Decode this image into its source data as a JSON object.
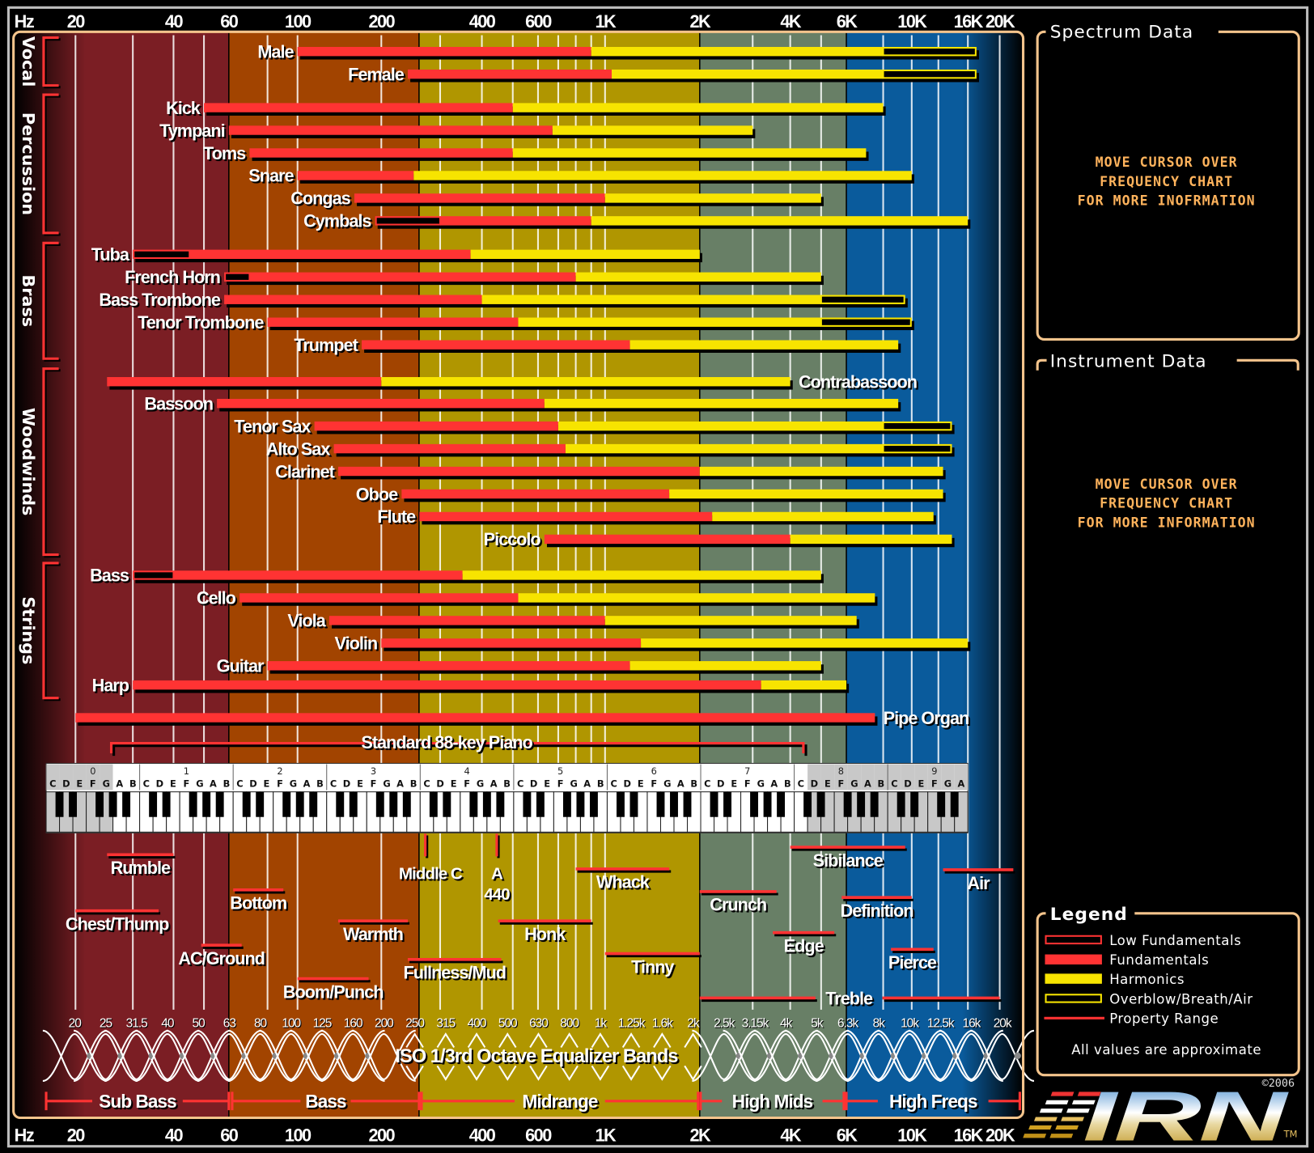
{
  "panels": {
    "spectrum": {
      "title": "Spectrum Data",
      "lines": [
        "MOVE CURSOR OVER",
        "FREQUENCY CHART",
        "FOR MORE INOFRMATION"
      ]
    },
    "instrument": {
      "title": "Instrument Data",
      "lines": [
        "MOVE CURSOR OVER",
        "FREQUENCY CHART",
        "FOR MORE INFORMATION"
      ]
    }
  },
  "legend": {
    "title": "Legend",
    "items": [
      {
        "label": "Low Fundamentals",
        "swatch": "outline-red"
      },
      {
        "label": "Fundamentals",
        "swatch": "solid-red"
      },
      {
        "label": "Harmonics",
        "swatch": "solid-yellow"
      },
      {
        "label": "Overblow/Breath/Air",
        "swatch": "outline-yellow"
      },
      {
        "label": "Property Range",
        "swatch": "line-red"
      }
    ],
    "note": "All values are approximate"
  },
  "branding": {
    "logo": "IRN",
    "copyright": "©2006",
    "tm": "TM"
  },
  "colors": {
    "fundamental": "#ff3333",
    "harmonic": "#f7e400",
    "frame": "#f4c48c",
    "message": "#ffb35c"
  },
  "chart_data": {
    "type": "bar",
    "title": "",
    "x_scale": "log",
    "xlim": [
      20,
      20000
    ],
    "axis_unit": "Hz",
    "axis_ticks": [
      {
        "hz": 20,
        "label": "20"
      },
      {
        "hz": 40,
        "label": "40"
      },
      {
        "hz": 60,
        "label": "60"
      },
      {
        "hz": 100,
        "label": "100"
      },
      {
        "hz": 200,
        "label": "200"
      },
      {
        "hz": 400,
        "label": "400"
      },
      {
        "hz": 600,
        "label": "600"
      },
      {
        "hz": 1000,
        "label": "1K"
      },
      {
        "hz": 2000,
        "label": "2K"
      },
      {
        "hz": 4000,
        "label": "4K"
      },
      {
        "hz": 6000,
        "label": "6K"
      },
      {
        "hz": 10000,
        "label": "10K"
      },
      {
        "hz": 16000,
        "label": "16K"
      },
      {
        "hz": 20000,
        "label": "20K"
      }
    ],
    "gridlines_hz": [
      20,
      30,
      40,
      50,
      80,
      100,
      200,
      300,
      400,
      500,
      600,
      700,
      800,
      900,
      1000,
      3000,
      4000,
      5000,
      8000,
      10000,
      12500,
      16000,
      20000
    ],
    "spectrum_bands": [
      {
        "name": "Sub Bass",
        "range": [
          16,
          60
        ],
        "color": "#7b1e24"
      },
      {
        "name": "Bass",
        "range": [
          60,
          250
        ],
        "color": "#a24400"
      },
      {
        "name": "Midrange",
        "range": [
          250,
          2000
        ],
        "color": "#b09600"
      },
      {
        "name": "High Mids",
        "range": [
          2000,
          6000
        ],
        "color": "#687f66"
      },
      {
        "name": "High Freqs",
        "range": [
          6000,
          20000
        ],
        "color": "#0a5b9c"
      }
    ],
    "categories": [
      {
        "name": "Vocal",
        "instruments": [
          {
            "name": "Male",
            "fund": [
              100,
              900
            ],
            "harm_end": 8000,
            "air_end": 17000
          },
          {
            "name": "Female",
            "fund": [
              240,
              1050
            ],
            "harm_end": 8000,
            "air_end": 17000
          }
        ]
      },
      {
        "name": "Percussion",
        "instruments": [
          {
            "name": "Kick",
            "fund": [
              50,
              500
            ],
            "harm_end": 8000
          },
          {
            "name": "Tympani",
            "fund": [
              60,
              670
            ],
            "harm_end": 3000
          },
          {
            "name": "Toms",
            "fund": [
              70,
              500
            ],
            "harm_end": 7000
          },
          {
            "name": "Snare",
            "fund": [
              100,
              250
            ],
            "harm_end": 10000
          },
          {
            "name": "Congas",
            "fund": [
              160,
              1000
            ],
            "harm_end": 5000
          },
          {
            "name": "Cymbals",
            "low_start": 190,
            "fund": [
              300,
              900
            ],
            "harm_end": 16000
          }
        ]
      },
      {
        "name": "Brass",
        "instruments": [
          {
            "name": "Tuba",
            "low_start": 30,
            "fund": [
              45,
              370
            ],
            "harm_end": 2000
          },
          {
            "name": "French Horn",
            "low_start": 58,
            "fund": [
              70,
              800
            ],
            "harm_end": 5000
          },
          {
            "name": "Bass Trombone",
            "fund": [
              58,
              400
            ],
            "harm_end": 5000,
            "air_end": 9500
          },
          {
            "name": "Tenor Trombone",
            "fund": [
              80,
              520
            ],
            "harm_end": 5000,
            "air_end": 10000
          },
          {
            "name": "Trumpet",
            "fund": [
              170,
              1200
            ],
            "harm_end": 9000
          }
        ]
      },
      {
        "name": "Woodwinds",
        "instruments": [
          {
            "name": "Contrabassoon",
            "fund": [
              25,
              200
            ],
            "harm_end": 4000,
            "label": "right"
          },
          {
            "name": "Bassoon",
            "fund": [
              55,
              630
            ],
            "harm_end": 9000
          },
          {
            "name": "Tenor Sax",
            "fund": [
              115,
              700
            ],
            "harm_end": 8000,
            "air_end": 14000
          },
          {
            "name": "Alto Sax",
            "fund": [
              135,
              740
            ],
            "harm_end": 8000,
            "air_end": 14000
          },
          {
            "name": "Clarinet",
            "fund": [
              140,
              2000
            ],
            "harm_end": 13000
          },
          {
            "name": "Oboe",
            "fund": [
              230,
              1600
            ],
            "harm_end": 13000
          },
          {
            "name": "Flute",
            "fund": [
              260,
              2200
            ],
            "harm_end": 12000
          },
          {
            "name": "Piccolo",
            "fund": [
              630,
              4000
            ],
            "harm_end": 14000
          }
        ]
      },
      {
        "name": "Strings",
        "instruments": [
          {
            "name": "Bass",
            "low_start": 30,
            "fund": [
              40,
              350
            ],
            "harm_end": 5000
          },
          {
            "name": "Cello",
            "fund": [
              65,
              520
            ],
            "harm_end": 7500
          },
          {
            "name": "Viola",
            "fund": [
              130,
              1000
            ],
            "harm_end": 6500
          },
          {
            "name": "Violin",
            "fund": [
              200,
              1300
            ],
            "harm_end": 16000
          },
          {
            "name": "Guitar",
            "fund": [
              80,
              1200
            ],
            "harm_end": 5000
          },
          {
            "name": "Harp",
            "fund": [
              30,
              3200
            ],
            "harm_end": 6000
          }
        ]
      }
    ],
    "other_instruments": [
      {
        "name": "Pipe Organ",
        "fund": [
          20,
          7500
        ],
        "label": "right"
      }
    ],
    "piano": {
      "title": "Standard 88-key Piano",
      "range_hz": [
        27.5,
        4186
      ],
      "octaves": [
        "0",
        "1",
        "2",
        "3",
        "4",
        "5",
        "6",
        "7",
        "8",
        "9"
      ],
      "notes": [
        "C",
        "D",
        "E",
        "F",
        "G",
        "A",
        "B"
      ],
      "white_keys": 69,
      "playable_white_keys": [
        5,
        56
      ]
    },
    "markers": [
      {
        "label": "Middle C",
        "hz": 261.6
      },
      {
        "label": "A",
        "sub": "440",
        "hz": 440
      }
    ],
    "properties": [
      {
        "name": "Rumble",
        "range": [
          25,
          40
        ]
      },
      {
        "name": "Chest/Thump",
        "range": [
          20,
          36
        ]
      },
      {
        "name": "AC/Ground",
        "range": [
          49,
          66
        ]
      },
      {
        "name": "Bottom",
        "range": [
          62,
          90
        ]
      },
      {
        "name": "Boom/Punch",
        "range": [
          100,
          180
        ]
      },
      {
        "name": "Warmth",
        "range": [
          140,
          240
        ]
      },
      {
        "name": "Fullness/Mud",
        "range": [
          240,
          460
        ]
      },
      {
        "name": "Honk",
        "range": [
          450,
          900
        ]
      },
      {
        "name": "Whack",
        "range": [
          800,
          1600
        ]
      },
      {
        "name": "Tinny",
        "range": [
          1000,
          2000
        ]
      },
      {
        "name": "Crunch",
        "range": [
          2000,
          3600
        ]
      },
      {
        "name": "Edge",
        "range": [
          3500,
          5500
        ]
      },
      {
        "name": "Sibilance",
        "range": [
          4000,
          9500
        ]
      },
      {
        "name": "Definition",
        "range": [
          5800,
          10000
        ]
      },
      {
        "name": "Pierce",
        "range": [
          8500,
          12000
        ]
      },
      {
        "name": "Air",
        "range": [
          13000,
          22000
        ]
      },
      {
        "name": "Treble",
        "range": [
          2000,
          20000
        ],
        "inline": true
      }
    ],
    "eq": {
      "title": "ISO 1/3rd Octave Equalizer Bands",
      "bands": [
        "20",
        "25",
        "31.5",
        "40",
        "50",
        "63",
        "80",
        "100",
        "125",
        "160",
        "200",
        "250",
        "315",
        "400",
        "500",
        "630",
        "800",
        "1k",
        "1.25k",
        "1.6k",
        "2k",
        "2.5k",
        "3.15k",
        "4k",
        "5k",
        "6.3k",
        "8k",
        "10k",
        "12.5k",
        "16k",
        "20k"
      ]
    }
  }
}
